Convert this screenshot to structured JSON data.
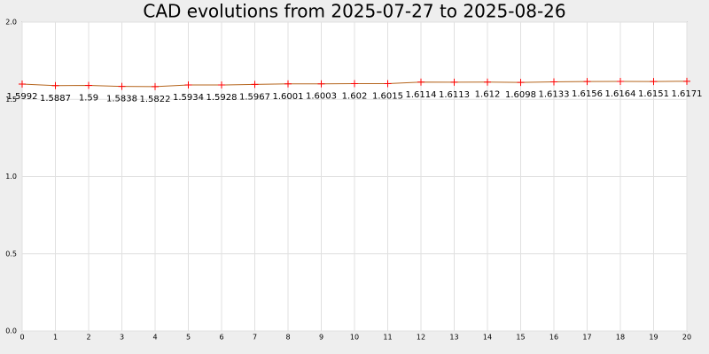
{
  "chart_data": {
    "type": "line",
    "title": "CAD evolutions from 2025-07-27 to 2025-08-26",
    "x": [
      0,
      1,
      2,
      3,
      4,
      5,
      6,
      7,
      8,
      9,
      10,
      11,
      12,
      13,
      14,
      15,
      16,
      17,
      18,
      19,
      20
    ],
    "values": [
      1.5992,
      1.5887,
      1.59,
      1.5838,
      1.5822,
      1.5934,
      1.5928,
      1.5967,
      1.6001,
      1.6003,
      1.602,
      1.6015,
      1.6114,
      1.6113,
      1.612,
      1.6098,
      1.6133,
      1.6156,
      1.6164,
      1.6151,
      1.6171
    ],
    "color": "#b5651d",
    "marker_color": "#ff0000",
    "xlim": [
      0,
      20
    ],
    "xticks": [
      0,
      1,
      2,
      3,
      4,
      5,
      6,
      7,
      8,
      9,
      10,
      11,
      12,
      13,
      14,
      15,
      16,
      17,
      18,
      19,
      20
    ],
    "ylim": [
      0,
      2
    ],
    "yticks": [
      {
        "value": 0,
        "label": "0.0"
      },
      {
        "value": 0.5,
        "label": "0.5"
      },
      {
        "value": 1,
        "label": "1.0"
      },
      {
        "value": 1.5,
        "label": "1.5"
      },
      {
        "value": 2,
        "label": "2.0"
      }
    ],
    "grid": true
  }
}
